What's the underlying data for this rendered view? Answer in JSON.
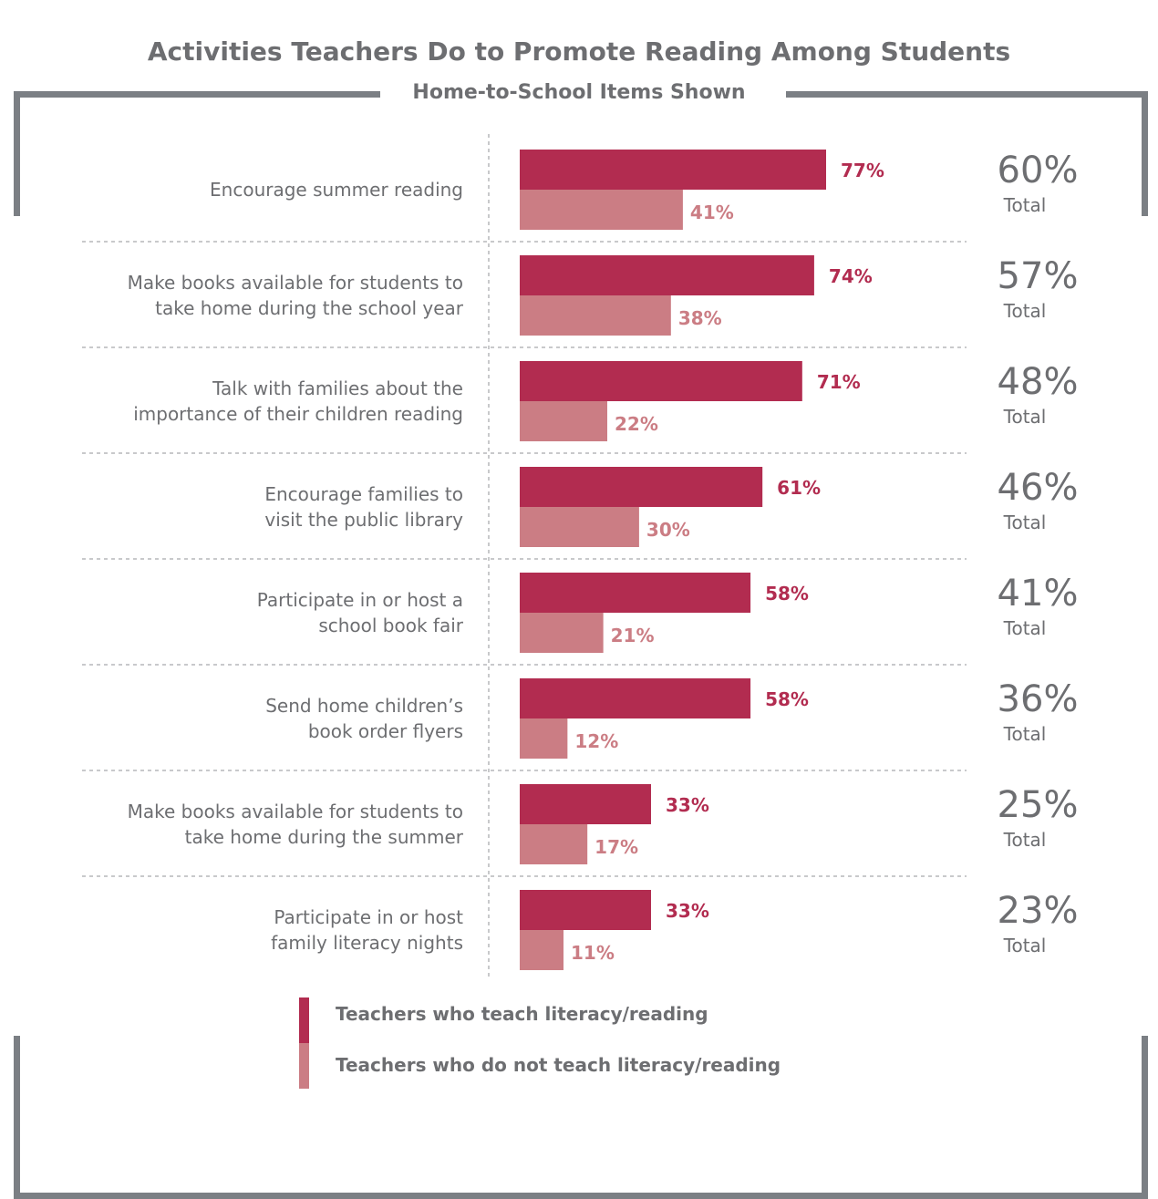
{
  "chart_data": {
    "type": "bar",
    "orientation": "horizontal",
    "title": "Activities Teachers Do to Promote Reading Among Students",
    "subtitle": "Home-to-School Items Shown",
    "categories": [
      [
        "Encourage summer reading"
      ],
      [
        "Make books available for students to",
        "take home during the school year"
      ],
      [
        "Talk with families about the",
        "importance of their children reading"
      ],
      [
        "Encourage families to",
        "visit the public library"
      ],
      [
        "Participate in or host a",
        "school book fair"
      ],
      [
        "Send home children’s",
        "book order flyers"
      ],
      [
        "Make books available for students to",
        "take home during the summer"
      ],
      [
        "Participate in or host",
        "family literacy nights"
      ]
    ],
    "series": [
      {
        "name": "Teachers who teach literacy/reading",
        "color": "#b22c50",
        "values": [
          77,
          74,
          71,
          61,
          58,
          58,
          33,
          33
        ]
      },
      {
        "name": "Teachers who do not teach literacy/reading",
        "color": "#cb7d84",
        "values": [
          41,
          38,
          22,
          30,
          21,
          12,
          17,
          11
        ]
      }
    ],
    "totals": [
      60,
      57,
      48,
      46,
      41,
      36,
      25,
      23
    ],
    "total_label": "Total",
    "value_suffix": "%",
    "xlim": [
      0,
      100
    ],
    "legend": "bottom",
    "grid": false
  }
}
